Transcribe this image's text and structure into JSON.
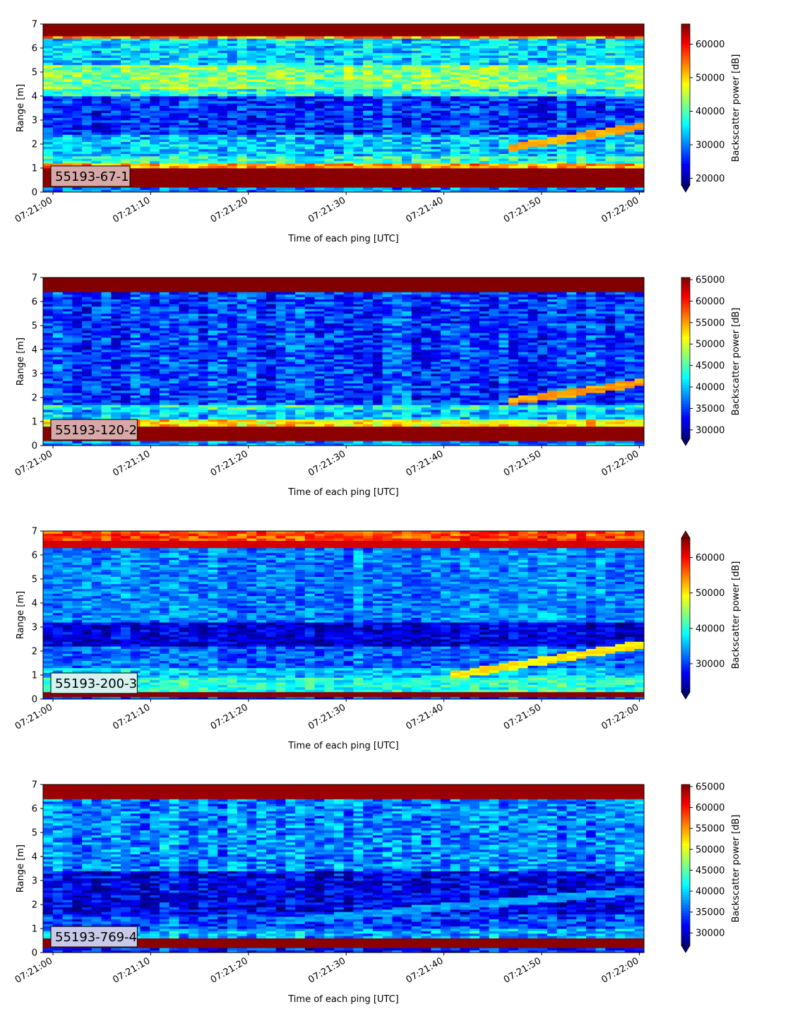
{
  "chart_data": [
    {
      "type": "heatmap",
      "label": "55193-67-1",
      "label_box_color": "#d8a8a8",
      "xlabel": "Time of each ping [UTC]",
      "ylabel": "Range [m]",
      "xticks": [
        "07:21:00",
        "07:21:10",
        "07:21:20",
        "07:21:30",
        "07:21:40",
        "07:21:50",
        "07:22:00"
      ],
      "xlim_seconds": [
        -1,
        60.5
      ],
      "ylim": [
        0,
        7
      ],
      "yticks": [
        0,
        1,
        2,
        3,
        4,
        5,
        6,
        7
      ],
      "colorbar": {
        "label": "Backscatter power [dB]",
        "vmin": 18000,
        "vmax": 66000,
        "ticks": [
          20000,
          30000,
          40000,
          50000,
          60000
        ],
        "extend": "min",
        "colormap": "jet"
      },
      "profile": [
        {
          "from": 0.0,
          "to": 0.2,
          "value": 30000
        },
        {
          "from": 0.2,
          "to": 1.05,
          "value": 65500
        },
        {
          "from": 1.05,
          "to": 1.25,
          "value": 52000
        },
        {
          "from": 1.25,
          "to": 1.5,
          "value": 38000
        },
        {
          "from": 1.5,
          "to": 2.4,
          "value": 33000
        },
        {
          "from": 2.4,
          "to": 4.0,
          "value": 26000
        },
        {
          "from": 4.0,
          "to": 4.3,
          "value": 37000
        },
        {
          "from": 4.3,
          "to": 5.3,
          "value": 42000
        },
        {
          "from": 5.3,
          "to": 6.45,
          "value": 34000
        },
        {
          "from": 6.45,
          "to": 6.55,
          "value": 52000
        },
        {
          "from": 6.55,
          "to": 7.0,
          "value": 65500
        }
      ],
      "target_track": {
        "t": [
          46.5,
          60.5
        ],
        "range": [
          1.85,
          2.75
        ],
        "value": 52000
      },
      "noise": 7000
    },
    {
      "type": "heatmap",
      "label": "55193-120-2",
      "label_box_color": "#d8a8a8",
      "xlabel": "Time of each ping [UTC]",
      "ylabel": "Range [m]",
      "xticks": [
        "07:21:00",
        "07:21:10",
        "07:21:20",
        "07:21:30",
        "07:21:40",
        "07:21:50",
        "07:22:00"
      ],
      "xlim_seconds": [
        -1,
        60.5
      ],
      "ylim": [
        0,
        7
      ],
      "yticks": [
        0,
        1,
        2,
        3,
        4,
        5,
        6,
        7
      ],
      "colorbar": {
        "label": "Backscatter power [dB]",
        "vmin": 28000,
        "vmax": 65500,
        "ticks": [
          30000,
          35000,
          40000,
          45000,
          50000,
          55000,
          60000,
          65000
        ],
        "extend": "min",
        "colormap": "jet"
      },
      "profile": [
        {
          "from": 0.0,
          "to": 0.2,
          "value": 38000
        },
        {
          "from": 0.2,
          "to": 0.8,
          "value": 65000
        },
        {
          "from": 0.8,
          "to": 1.1,
          "value": 52000
        },
        {
          "from": 1.1,
          "to": 1.5,
          "value": 40000
        },
        {
          "from": 1.5,
          "to": 1.7,
          "value": 43000
        },
        {
          "from": 1.7,
          "to": 6.45,
          "value": 35000
        },
        {
          "from": 6.45,
          "to": 7.0,
          "value": 65500
        }
      ],
      "target_track": {
        "t": [
          47,
          60.5
        ],
        "range": [
          1.85,
          2.65
        ],
        "value": 55000
      },
      "noise": 5500
    },
    {
      "type": "heatmap",
      "label": "55193-200-3",
      "label_box_color": "#d4f2f0",
      "xlabel": "Time of each ping [UTC]",
      "ylabel": "Range [m]",
      "xticks": [
        "07:21:00",
        "07:21:10",
        "07:21:20",
        "07:21:30",
        "07:21:40",
        "07:21:50",
        "07:22:00"
      ],
      "xlim_seconds": [
        -1,
        60.5
      ],
      "ylim": [
        0,
        7
      ],
      "yticks": [
        0,
        1,
        2,
        3,
        4,
        5,
        6,
        7
      ],
      "colorbar": {
        "label": "Backscatter power [dB]",
        "vmin": 22000,
        "vmax": 65500,
        "ticks": [
          30000,
          40000,
          50000,
          60000
        ],
        "extend": "both",
        "colormap": "jet"
      },
      "profile": [
        {
          "from": 0.0,
          "to": 0.15,
          "value": 30000
        },
        {
          "from": 0.15,
          "to": 0.35,
          "value": 65000
        },
        {
          "from": 0.35,
          "to": 0.9,
          "value": 40000
        },
        {
          "from": 0.9,
          "to": 1.3,
          "value": 36000
        },
        {
          "from": 1.3,
          "to": 2.2,
          "value": 32000
        },
        {
          "from": 2.2,
          "to": 3.2,
          "value": 26000
        },
        {
          "from": 3.2,
          "to": 6.3,
          "value": 33000
        },
        {
          "from": 6.3,
          "to": 6.6,
          "value": 62000
        },
        {
          "from": 6.6,
          "to": 7.0,
          "value": 57000
        }
      ],
      "target_track": {
        "t": [
          41,
          60.5
        ],
        "range": [
          1.0,
          2.3
        ],
        "value": 50000
      },
      "noise": 5000
    },
    {
      "type": "heatmap",
      "label": "55193-769-4",
      "label_box_color": "#c8c8e8",
      "xlabel": "Time of each ping [UTC]",
      "ylabel": "Range [m]",
      "xticks": [
        "07:21:00",
        "07:21:10",
        "07:21:20",
        "07:21:30",
        "07:21:40",
        "07:21:50",
        "07:22:00"
      ],
      "xlim_seconds": [
        -1,
        60.5
      ],
      "ylim": [
        0,
        7
      ],
      "yticks": [
        0,
        1,
        2,
        3,
        4,
        5,
        6,
        7
      ],
      "colorbar": {
        "label": "Backscatter power [dB]",
        "vmin": 27000,
        "vmax": 65500,
        "ticks": [
          30000,
          35000,
          40000,
          45000,
          50000,
          55000,
          60000,
          65000
        ],
        "extend": "min",
        "colormap": "jet"
      },
      "profile": [
        {
          "from": 0.0,
          "to": 0.2,
          "value": 33000
        },
        {
          "from": 0.2,
          "to": 0.65,
          "value": 65000
        },
        {
          "from": 0.65,
          "to": 1.0,
          "value": 38000
        },
        {
          "from": 1.0,
          "to": 1.6,
          "value": 34000
        },
        {
          "from": 1.6,
          "to": 3.4,
          "value": 31000
        },
        {
          "from": 3.4,
          "to": 6.45,
          "value": 37000
        },
        {
          "from": 6.45,
          "to": 7.0,
          "value": 64500
        }
      ],
      "target_track": {
        "t": [
          23,
          60.5
        ],
        "range": [
          1.3,
          2.6
        ],
        "value": 38000
      },
      "noise": 5500
    }
  ]
}
